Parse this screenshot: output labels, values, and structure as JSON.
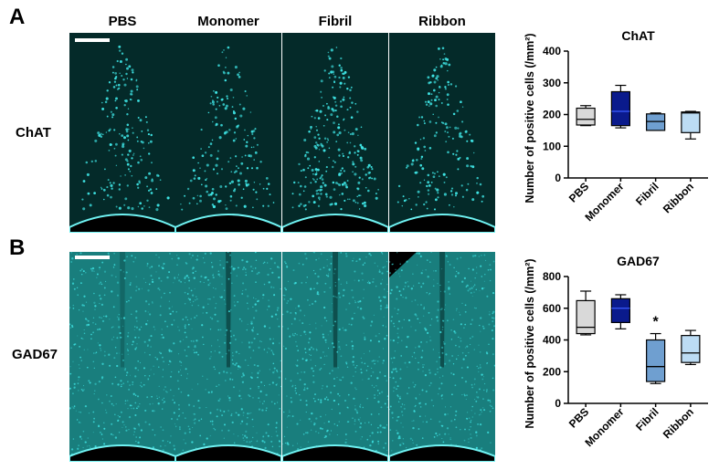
{
  "panels": [
    {
      "letter": "A",
      "row_label": "ChAT",
      "stain": "chat"
    },
    {
      "letter": "B",
      "row_label": "GAD67",
      "stain": "gad"
    }
  ],
  "column_headers": [
    "PBS",
    "Monomer",
    "Fibril",
    "Ribbon"
  ],
  "colors": {
    "micrograph_bg": "#06302f",
    "cells": "#3fe6e6",
    "PBS": "#d9d9d9",
    "Monomer": "#0a1a8c",
    "Fibril": "#6f9fd0",
    "Ribbon": "#bcdcf4"
  },
  "chart_data": [
    {
      "type": "box",
      "title": "ChAT",
      "ylabel": "Number of positive cells (/mm²)",
      "ylim": [
        0,
        400
      ],
      "yticks": [
        0,
        100,
        200,
        300,
        400
      ],
      "categories": [
        "PBS",
        "Monomer",
        "Fibril",
        "Ribbon"
      ],
      "boxes": [
        {
          "min": 165,
          "q1": 167,
          "median": 185,
          "q3": 220,
          "max": 228
        },
        {
          "min": 158,
          "q1": 165,
          "median": 210,
          "q3": 272,
          "max": 292
        },
        {
          "min": 150,
          "q1": 150,
          "median": 178,
          "q3": 202,
          "max": 205
        },
        {
          "min": 123,
          "q1": 143,
          "median": 205,
          "q3": 208,
          "max": 210
        }
      ],
      "annotations": []
    },
    {
      "type": "box",
      "title": "GAD67",
      "ylabel": "Number of positive cells (/mm²)",
      "ylim": [
        0,
        800
      ],
      "yticks": [
        0,
        200,
        400,
        600,
        800
      ],
      "categories": [
        "PBS",
        "Monomer",
        "Fibril",
        "Ribbon"
      ],
      "boxes": [
        {
          "min": 432,
          "q1": 440,
          "median": 480,
          "q3": 648,
          "max": 708
        },
        {
          "min": 470,
          "q1": 510,
          "median": 600,
          "q3": 660,
          "max": 685
        },
        {
          "min": 125,
          "q1": 138,
          "median": 232,
          "q3": 400,
          "max": 440
        },
        {
          "min": 245,
          "q1": 258,
          "median": 318,
          "q3": 428,
          "max": 460
        }
      ],
      "annotations": [
        {
          "category": "Fibril",
          "text": "*"
        }
      ]
    }
  ]
}
